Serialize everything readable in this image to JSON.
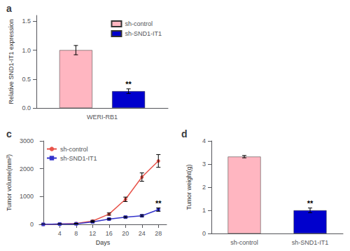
{
  "chart_data": [
    {
      "type": "bar",
      "title": "a",
      "categories": [
        "WERI-RB1"
      ],
      "series": [
        {
          "name": "sh-control",
          "color": "#ffb6c1",
          "values": [
            1.0
          ],
          "errors": [
            0.08
          ]
        },
        {
          "name": "sh-SND1-IT1",
          "color": "#0000cd",
          "values": [
            0.29
          ],
          "errors": [
            0.04
          ]
        }
      ],
      "ylabel": "Relative SND1-IT1 expression",
      "ylim": [
        0,
        1.6
      ],
      "yticks": [
        {
          "value": 0,
          "label": "0.0"
        },
        0.5,
        {
          "value": 1,
          "label": "1.0"
        },
        1.5
      ],
      "grid": false,
      "legend": "upper right",
      "annotations": [
        {
          "text": "**",
          "series": "sh-SND1-IT1",
          "x": "WERI-RB1"
        }
      ]
    },
    {
      "type": "line",
      "title": "c",
      "x": [
        0,
        4,
        8,
        12,
        16,
        20,
        24,
        28
      ],
      "series": [
        {
          "name": "sh-control",
          "color": "#e8534a",
          "marker": "circle",
          "values": [
            0,
            15,
            30,
            120,
            370,
            900,
            1700,
            2280
          ],
          "errors": [
            1,
            5,
            10,
            25,
            40,
            80,
            150,
            230
          ]
        },
        {
          "name": "sh-SND1-IT1",
          "color": "#3333cc",
          "marker": "square",
          "values": [
            0,
            10,
            20,
            90,
            190,
            260,
            310,
            530
          ],
          "errors": [
            1,
            4,
            8,
            15,
            20,
            25,
            30,
            60
          ]
        }
      ],
      "xlabel": "Days",
      "ylabel": "Tumor volume(mm³)",
      "xlim": [
        -1,
        30
      ],
      "xticks": [
        4,
        8,
        12,
        16,
        20,
        24,
        28
      ],
      "ylim": [
        0,
        3000
      ],
      "yticks": [
        0,
        1000,
        2000,
        3000
      ],
      "grid": false,
      "legend": "upper left",
      "annotations": [
        {
          "text": "**",
          "series": "sh-SND1-IT1",
          "x": 28
        }
      ]
    },
    {
      "type": "bar",
      "title": "d",
      "categories": [
        "sh-control",
        "sh-SND1-IT1"
      ],
      "values": [
        3.32,
        1.0
      ],
      "errors": [
        0.05,
        0.1
      ],
      "colors": [
        "#ffb6c1",
        "#0000cd"
      ],
      "ylabel": "Tumor weight(g)",
      "ylim": [
        0,
        4
      ],
      "yticks": [
        0,
        1,
        2,
        3,
        4
      ],
      "grid": false,
      "annotations": [
        {
          "text": "**",
          "x": "sh-SND1-IT1"
        }
      ]
    }
  ]
}
